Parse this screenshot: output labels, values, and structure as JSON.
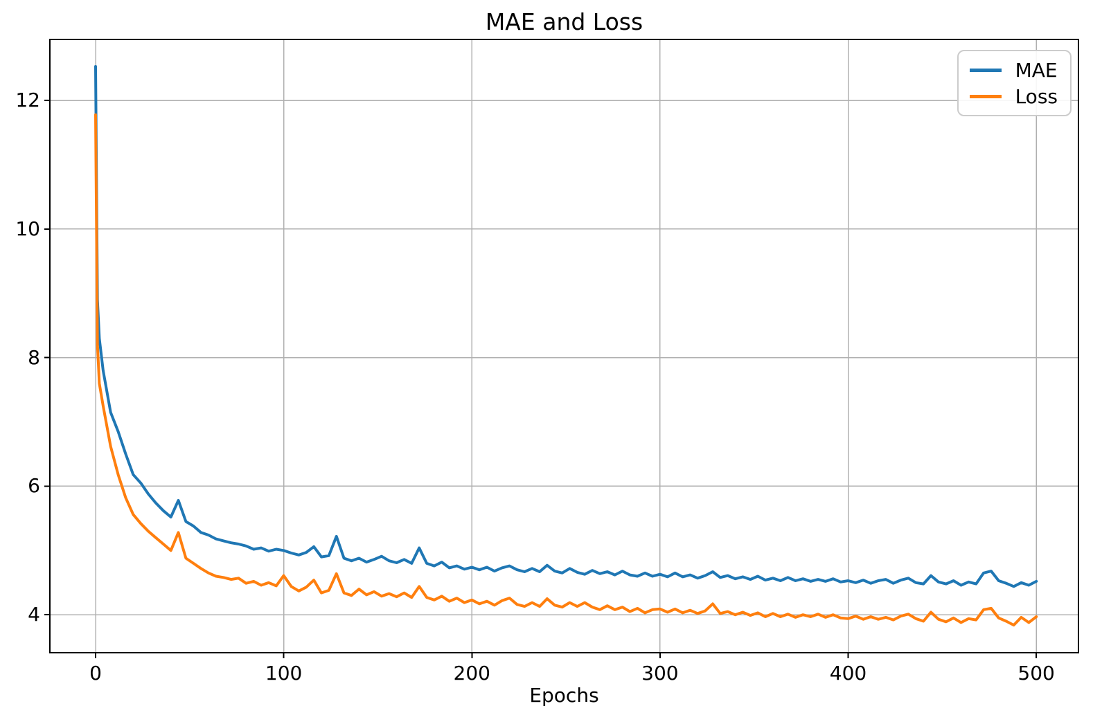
{
  "chart_data": {
    "type": "line",
    "title": "MAE and Loss",
    "xlabel": "Epochs",
    "ylabel": "",
    "grid": true,
    "legend_loc": "upper right",
    "background": "#ffffff",
    "grid_color": "#b0b0b0",
    "axis_color": "#000000",
    "xticks": [
      0,
      100,
      200,
      300,
      400,
      500
    ],
    "yticks": [
      4,
      6,
      8,
      10,
      12
    ],
    "xlim": [
      -24.3,
      522.4
    ],
    "ylim": [
      3.41,
      12.95
    ],
    "x": [
      0,
      1,
      2,
      4,
      8,
      12,
      16,
      20,
      24,
      28,
      32,
      36,
      40,
      44,
      48,
      52,
      56,
      60,
      64,
      68,
      72,
      76,
      80,
      84,
      88,
      92,
      96,
      100,
      104,
      108,
      112,
      116,
      120,
      124,
      128,
      132,
      136,
      140,
      144,
      148,
      152,
      156,
      160,
      164,
      168,
      172,
      176,
      180,
      184,
      188,
      192,
      196,
      200,
      204,
      208,
      212,
      216,
      220,
      224,
      228,
      232,
      236,
      240,
      244,
      248,
      252,
      256,
      260,
      264,
      268,
      272,
      276,
      280,
      284,
      288,
      292,
      296,
      300,
      304,
      308,
      312,
      316,
      320,
      324,
      328,
      332,
      336,
      340,
      344,
      348,
      352,
      356,
      360,
      364,
      368,
      372,
      376,
      380,
      384,
      388,
      392,
      396,
      400,
      404,
      408,
      412,
      416,
      420,
      424,
      428,
      432,
      436,
      440,
      444,
      448,
      452,
      456,
      460,
      464,
      468,
      472,
      476,
      480,
      484,
      488,
      492,
      496,
      500
    ],
    "series": [
      {
        "name": "MAE",
        "color": "#1f77b4",
        "values": [
          12.53,
          8.9,
          8.3,
          7.8,
          7.15,
          6.85,
          6.5,
          6.18,
          6.05,
          5.88,
          5.74,
          5.62,
          5.52,
          5.78,
          5.45,
          5.38,
          5.28,
          5.24,
          5.18,
          5.15,
          5.12,
          5.1,
          5.07,
          5.02,
          5.04,
          4.99,
          5.02,
          5.0,
          4.96,
          4.93,
          4.97,
          5.06,
          4.9,
          4.92,
          5.22,
          4.88,
          4.84,
          4.88,
          4.82,
          4.86,
          4.91,
          4.84,
          4.81,
          4.86,
          4.8,
          5.04,
          4.8,
          4.76,
          4.82,
          4.73,
          4.76,
          4.71,
          4.74,
          4.7,
          4.74,
          4.68,
          4.73,
          4.76,
          4.7,
          4.67,
          4.72,
          4.67,
          4.77,
          4.68,
          4.65,
          4.72,
          4.66,
          4.63,
          4.69,
          4.64,
          4.67,
          4.62,
          4.68,
          4.62,
          4.6,
          4.65,
          4.6,
          4.63,
          4.59,
          4.65,
          4.59,
          4.62,
          4.57,
          4.61,
          4.67,
          4.58,
          4.61,
          4.56,
          4.59,
          4.55,
          4.6,
          4.54,
          4.57,
          4.53,
          4.58,
          4.53,
          4.56,
          4.52,
          4.55,
          4.52,
          4.56,
          4.51,
          4.53,
          4.5,
          4.54,
          4.49,
          4.53,
          4.55,
          4.49,
          4.54,
          4.57,
          4.5,
          4.48,
          4.61,
          4.51,
          4.48,
          4.53,
          4.46,
          4.51,
          4.48,
          4.65,
          4.68,
          4.53,
          4.49,
          4.44,
          4.5,
          4.46,
          4.52
        ]
      },
      {
        "name": "Loss",
        "color": "#ff7f0e",
        "values": [
          11.78,
          8.2,
          7.6,
          7.25,
          6.62,
          6.18,
          5.82,
          5.56,
          5.42,
          5.3,
          5.2,
          5.1,
          5.0,
          5.28,
          4.88,
          4.8,
          4.72,
          4.65,
          4.6,
          4.58,
          4.55,
          4.57,
          4.49,
          4.52,
          4.46,
          4.5,
          4.45,
          4.61,
          4.44,
          4.37,
          4.43,
          4.54,
          4.34,
          4.38,
          4.64,
          4.34,
          4.3,
          4.4,
          4.31,
          4.36,
          4.29,
          4.33,
          4.28,
          4.34,
          4.27,
          4.44,
          4.27,
          4.23,
          4.29,
          4.21,
          4.26,
          4.19,
          4.23,
          4.17,
          4.21,
          4.15,
          4.22,
          4.26,
          4.16,
          4.13,
          4.19,
          4.13,
          4.25,
          4.15,
          4.12,
          4.19,
          4.13,
          4.19,
          4.12,
          4.08,
          4.14,
          4.08,
          4.12,
          4.05,
          4.1,
          4.03,
          4.08,
          4.09,
          4.04,
          4.09,
          4.03,
          4.07,
          4.02,
          4.06,
          4.17,
          4.02,
          4.05,
          4.0,
          4.04,
          3.99,
          4.03,
          3.97,
          4.02,
          3.97,
          4.01,
          3.96,
          4.0,
          3.97,
          4.01,
          3.96,
          4.0,
          3.95,
          3.94,
          3.98,
          3.93,
          3.97,
          3.93,
          3.96,
          3.92,
          3.98,
          4.01,
          3.94,
          3.9,
          4.04,
          3.93,
          3.89,
          3.95,
          3.88,
          3.94,
          3.92,
          4.08,
          4.1,
          3.95,
          3.9,
          3.84,
          3.96,
          3.88,
          3.97
        ]
      }
    ]
  }
}
